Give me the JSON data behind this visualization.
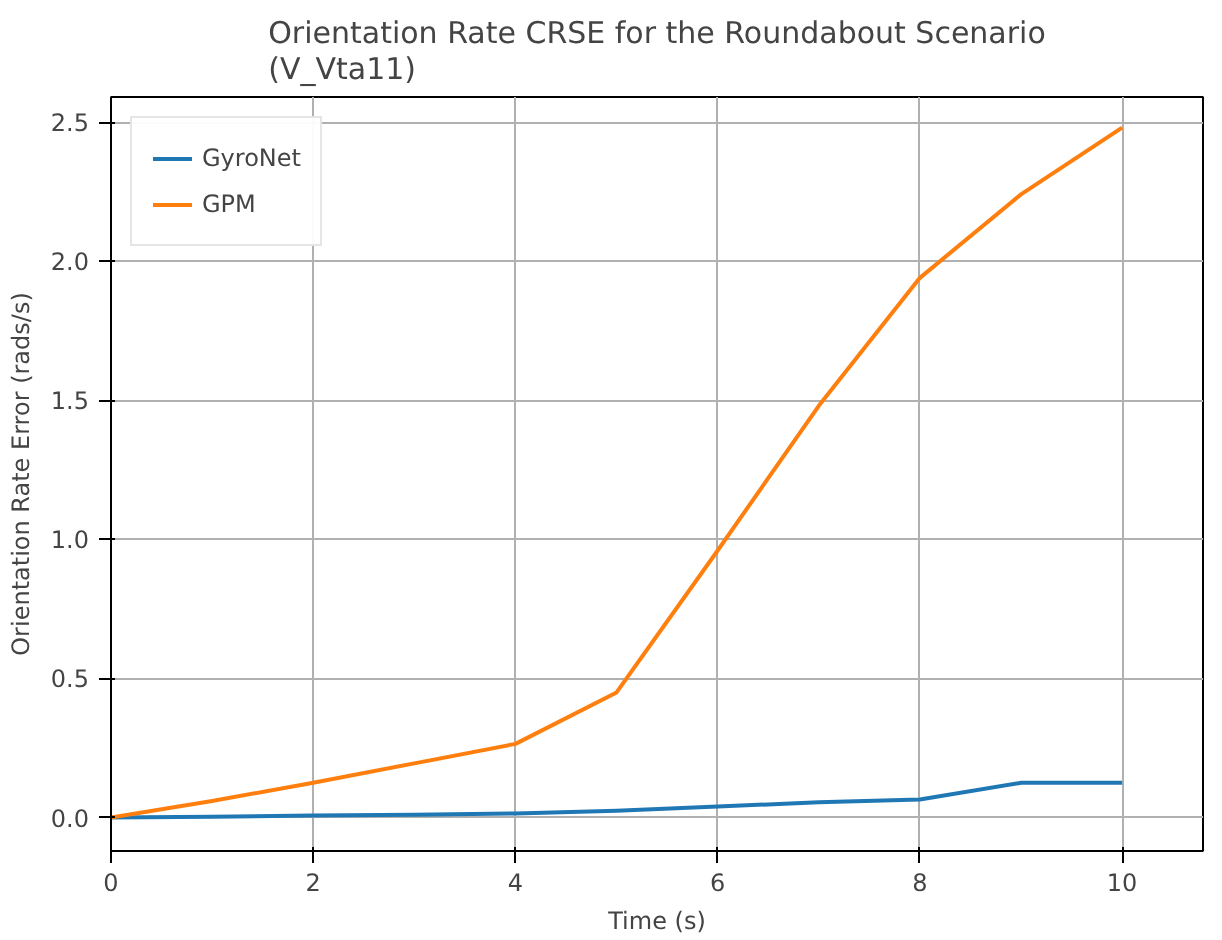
{
  "chart_data": {
    "type": "line",
    "title": "Orientation Rate CRSE for the Roundabout Scenario\n(V_Vta11)",
    "xlabel": "Time (s)",
    "ylabel": "Orientation Rate Error (rads/s)",
    "x": [
      0,
      1,
      2,
      3,
      4,
      5,
      6,
      7,
      8,
      9,
      10
    ],
    "series": [
      {
        "name": "GyroNet",
        "color": "#1f77b4",
        "values": [
          0,
          0.003,
          0.008,
          0.01,
          0.015,
          0.025,
          0.04,
          0.055,
          0.065,
          0.125,
          0.125
        ]
      },
      {
        "name": "GPM",
        "color": "#ff7f0e",
        "values": [
          0,
          0.06,
          0.125,
          0.195,
          0.265,
          0.45,
          0.96,
          1.48,
          1.94,
          2.24,
          2.48
        ]
      }
    ],
    "xlim": [
      0,
      10.8
    ],
    "ylim": [
      -0.12,
      2.59
    ],
    "xticks": [
      0,
      2,
      4,
      6,
      8,
      10
    ],
    "yticks": [
      {
        "value": 0,
        "label": "0.0"
      },
      {
        "value": 0.5,
        "label": "0.5"
      },
      {
        "value": 1,
        "label": "1.0"
      },
      {
        "value": 1.5,
        "label": "1.5"
      },
      {
        "value": 2,
        "label": "2.0"
      },
      {
        "value": 2.5,
        "label": "2.5"
      }
    ],
    "grid": true,
    "legend": "top left"
  }
}
